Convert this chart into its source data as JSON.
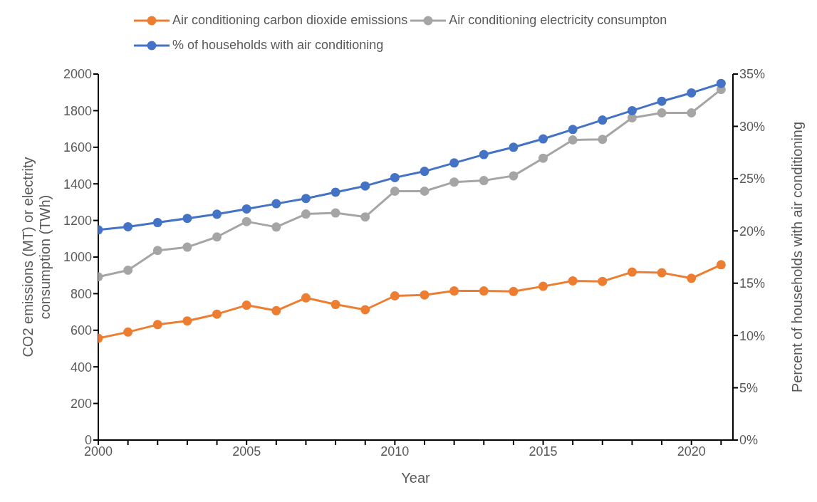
{
  "chart_data": {
    "type": "line",
    "xlabel": "Year",
    "ylabel": "CO2 emissions (MT) or electrity consumption (TWh)",
    "y2label": "Percent of households with air conditioning",
    "x": [
      2000,
      2001,
      2002,
      2003,
      2004,
      2005,
      2006,
      2007,
      2008,
      2009,
      2010,
      2011,
      2012,
      2013,
      2014,
      2015,
      2016,
      2017,
      2018,
      2019,
      2020,
      2021
    ],
    "series": [
      {
        "name": "Air conditioning carbon dioxide emissions",
        "color": "#ed7d31",
        "values": [
          556,
          590,
          631,
          651,
          688,
          737,
          707,
          777,
          741,
          712,
          788,
          793,
          815,
          815,
          812,
          840,
          870,
          867,
          918,
          914,
          884,
          958
        ]
      },
      {
        "name": "Air conditioning electricity consumpton",
        "color": "#a5a5a5",
        "values": [
          892,
          928,
          1036,
          1054,
          1110,
          1194,
          1164,
          1235,
          1241,
          1219,
          1360,
          1360,
          1410,
          1418,
          1444,
          1540,
          1640,
          1643,
          1761,
          1788,
          1788,
          1916
        ]
      },
      {
        "name": "% of households with air conditioning",
        "color": "#4472c4",
        "axis": "y2",
        "values": [
          20.1,
          20.4,
          20.8,
          21.2,
          21.6,
          22.1,
          22.6,
          23.1,
          23.7,
          24.3,
          25.1,
          25.7,
          26.5,
          27.3,
          28.0,
          28.8,
          29.7,
          30.6,
          31.5,
          32.4,
          33.2,
          34.1
        ]
      }
    ],
    "xlim": [
      2000,
      2021.4
    ],
    "xticks": [
      2000,
      {
        "value": 2001,
        "label": null
      },
      {
        "value": 2002,
        "label": null
      },
      {
        "value": 2003,
        "label": null
      },
      {
        "value": 2004,
        "label": null
      },
      2005,
      {
        "value": 2006,
        "label": null
      },
      {
        "value": 2007,
        "label": null
      },
      {
        "value": 2008,
        "label": null
      },
      {
        "value": 2009,
        "label": null
      },
      2010,
      {
        "value": 2011,
        "label": null
      },
      {
        "value": 2012,
        "label": null
      },
      {
        "value": 2013,
        "label": null
      },
      {
        "value": 2014,
        "label": null
      },
      2015,
      {
        "value": 2016,
        "label": null
      },
      {
        "value": 2017,
        "label": null
      },
      {
        "value": 2018,
        "label": null
      },
      {
        "value": 2019,
        "label": null
      },
      2020,
      {
        "value": 2021,
        "label": null
      }
    ],
    "ylim": [
      0,
      2000
    ],
    "yticks": [
      0,
      200,
      400,
      600,
      800,
      1000,
      1200,
      1400,
      1600,
      1800,
      2000
    ],
    "y2lim": [
      0,
      35
    ],
    "y2ticks": [
      {
        "value": 0,
        "label": "0%"
      },
      {
        "value": 5,
        "label": "5%"
      },
      {
        "value": 10,
        "label": "10%"
      },
      {
        "value": 15,
        "label": "15%"
      },
      {
        "value": 20,
        "label": "20%"
      },
      {
        "value": 25,
        "label": "25%"
      },
      {
        "value": 30,
        "label": "30%"
      },
      {
        "value": 35,
        "label": "35%"
      }
    ],
    "grid": false,
    "legend": "top",
    "marker": "circle",
    "line_style": "solid"
  }
}
